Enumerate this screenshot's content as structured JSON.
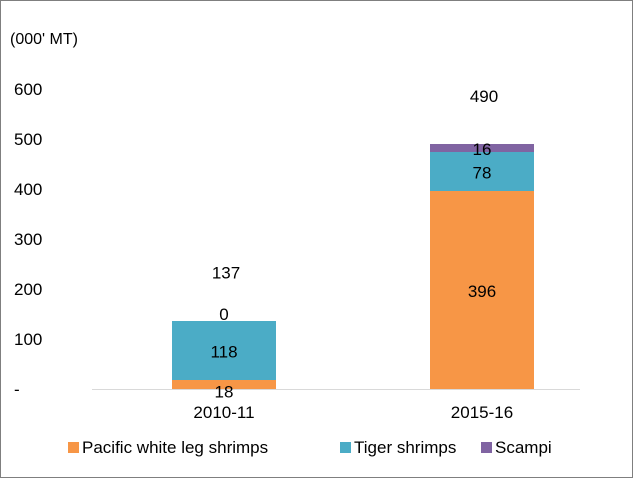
{
  "chart_data": {
    "type": "bar",
    "stacked": true,
    "title": "",
    "unit_label": "(000' MT)",
    "xlabel": "",
    "ylabel": "",
    "ylim": [
      0,
      600
    ],
    "yticks": [
      0,
      100,
      200,
      300,
      400,
      500,
      600
    ],
    "ytick_labels": [
      "-",
      "100",
      "200",
      "300",
      "400",
      "500",
      "600"
    ],
    "grid": false,
    "legend_position": "bottom",
    "categories": [
      "2010-11",
      "2015-16"
    ],
    "series": [
      {
        "name": "Pacific white leg shrimps",
        "color": "#F79646",
        "values": [
          18,
          396
        ],
        "labels": [
          "18",
          "396"
        ]
      },
      {
        "name": "Tiger shrimps",
        "color": "#4BACC6",
        "values": [
          118,
          78
        ],
        "labels": [
          "118",
          "78"
        ]
      },
      {
        "name": "Scampi",
        "color": "#8064A2",
        "values": [
          0,
          16
        ],
        "labels": [
          "0",
          "16"
        ]
      }
    ],
    "totals": [
      137,
      490
    ],
    "total_labels": [
      "137",
      "490"
    ]
  }
}
